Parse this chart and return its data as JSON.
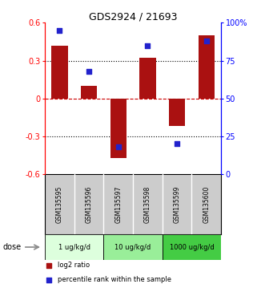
{
  "title": "GDS2924 / 21693",
  "samples": [
    "GSM135595",
    "GSM135596",
    "GSM135597",
    "GSM135598",
    "GSM135599",
    "GSM135600"
  ],
  "log2_ratio": [
    0.42,
    0.1,
    -0.47,
    0.32,
    -0.22,
    0.5
  ],
  "percentile": [
    95,
    68,
    18,
    85,
    20,
    88
  ],
  "ylim_left": [
    -0.6,
    0.6
  ],
  "ylim_right": [
    0,
    100
  ],
  "yticks_left": [
    -0.6,
    -0.3,
    0.0,
    0.3,
    0.6
  ],
  "yticks_right": [
    0,
    25,
    50,
    75,
    100
  ],
  "ytick_labels_left": [
    "-0.6",
    "-0.3",
    "0",
    "0.3",
    "0.6"
  ],
  "ytick_labels_right": [
    "0",
    "25",
    "50",
    "75",
    "100%"
  ],
  "hlines_dotted": [
    0.3,
    -0.3
  ],
  "hline_zero": 0.0,
  "bar_color": "#aa1111",
  "dot_color": "#2222cc",
  "bar_width": 0.55,
  "dose_groups": [
    {
      "label": "1 ug/kg/d",
      "cols": [
        0,
        1
      ],
      "color": "#ddffdd"
    },
    {
      "label": "10 ug/kg/d",
      "cols": [
        2,
        3
      ],
      "color": "#99ee99"
    },
    {
      "label": "1000 ug/kg/d",
      "cols": [
        4,
        5
      ],
      "color": "#44cc44"
    }
  ],
  "dose_label": "dose",
  "legend_items": [
    {
      "label": "log2 ratio",
      "color": "#aa1111"
    },
    {
      "label": "percentile rank within the sample",
      "color": "#2222cc"
    }
  ],
  "axis_bg": "#ffffff",
  "plot_bg": "#ffffff",
  "sample_label_bg": "#cccccc",
  "zero_line_color": "#cc0000",
  "grid_line_color": "#000000"
}
